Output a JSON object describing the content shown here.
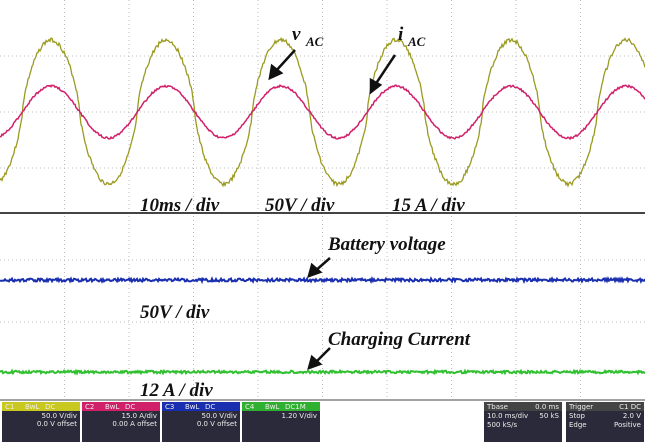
{
  "annotations": {
    "v_main": "v",
    "v_sub": "AC",
    "i_main": "i",
    "i_sub": "AC",
    "top_scale": [
      "10ms / div",
      "50V / div",
      "15 A / div"
    ],
    "battery": "Battery voltage",
    "battery_scale": "50V / div",
    "charging": "Charging Current",
    "charging_scale": "12 A / div"
  },
  "status_bar": {
    "ch1": [
      "C1",
      "BwL",
      "DC",
      "50.0 V/div",
      "0.0 V offset"
    ],
    "ch2": [
      "C2",
      "BwL",
      "DC",
      "15.0 A/div",
      "0.00 A offset"
    ],
    "ch3": [
      "C3",
      "BwL",
      "DC",
      "50.0 V/div",
      "0.0 V offset"
    ],
    "ch4": [
      "C4",
      "BwL",
      "DC1M",
      "1.20 V/div"
    ],
    "tbase": [
      "Tbase",
      "0.0 ms",
      "10.0 ms/div",
      "50 kS",
      "500 kS/s"
    ],
    "trigger": [
      "Trigger",
      "C1 DC",
      "Stop",
      "2.0 V",
      "Edge",
      "Positive"
    ]
  }
}
